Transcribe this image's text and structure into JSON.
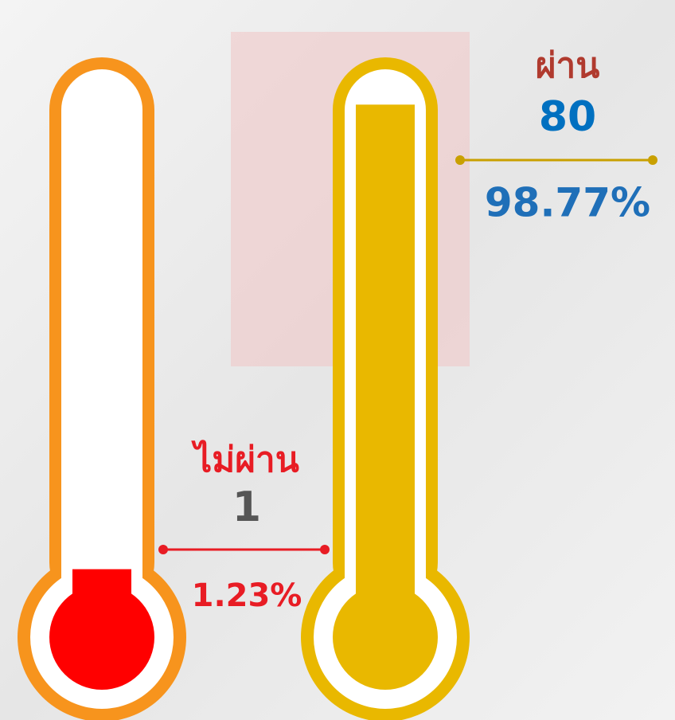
{
  "chart_data": {
    "type": "thermometer",
    "categories": [
      "ไม่ผ่าน",
      "ผ่าน"
    ],
    "counts": [
      1,
      80
    ],
    "values": [
      1.23,
      98.77
    ],
    "value_labels": [
      "1.23%",
      "98.77%"
    ],
    "colors": [
      "#ff0000",
      "#e9b800"
    ],
    "frame_colors": [
      "#f7941d",
      "#e9b800"
    ]
  }
}
